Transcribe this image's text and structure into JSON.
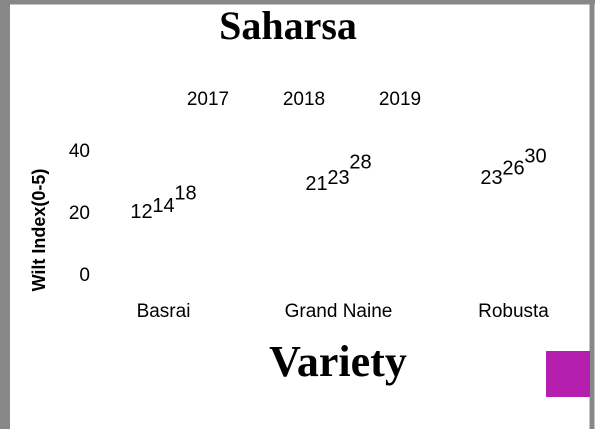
{
  "chart_data": {
    "type": "bar",
    "title": "Saharsa",
    "x_label": "Variety",
    "y_label": "Wilt Index(0-5)",
    "categories": [
      "Basrai",
      "Grand Naine",
      "Robusta"
    ],
    "series": [
      {
        "name": "2017",
        "values": [
          12,
          21,
          23
        ]
      },
      {
        "name": "2018",
        "values": [
          14,
          23,
          26
        ]
      },
      {
        "name": "2019",
        "values": [
          18,
          28,
          30
        ]
      }
    ],
    "ylim": [
      0,
      40
    ],
    "yticks": [
      0,
      20,
      40
    ],
    "grid": false,
    "legend": "top"
  }
}
